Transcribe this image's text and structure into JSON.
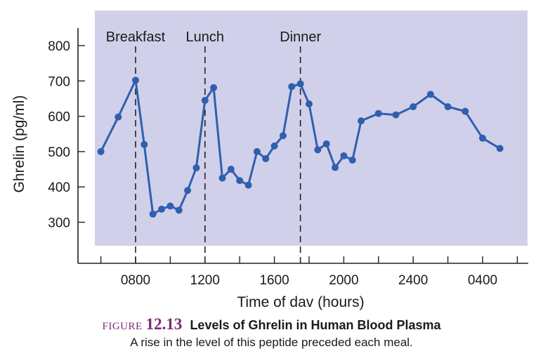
{
  "chart_data": {
    "type": "line",
    "xlabel": "Time of dav (hours)",
    "ylabel": "Ghrelin (pg/ml)",
    "x_ticks": [
      "0800",
      "1200",
      "1600",
      "2000",
      "2400",
      "0400"
    ],
    "y_ticks": [
      300,
      400,
      500,
      600,
      700,
      800
    ],
    "ylim": [
      240,
      850
    ],
    "xlim_hours": [
      5.5,
      31.5
    ],
    "grid": false,
    "background_color": "#d1d0ea",
    "line_color": "#2f5fae",
    "marker_color": "#2f5fae",
    "meals": [
      {
        "label": "Breakfast",
        "hour": 8.0
      },
      {
        "label": "Lunch",
        "hour": 12.0
      },
      {
        "label": "Dinner",
        "hour": 17.5
      }
    ],
    "series": [
      {
        "hours": [
          6.0,
          7.0,
          8.0,
          8.5,
          9.0,
          9.5,
          10.0,
          10.5,
          11.0,
          11.5,
          12.0,
          12.5,
          13.0,
          13.5,
          14.0,
          14.5,
          15.0,
          15.5,
          16.0,
          16.5,
          17.0,
          17.5,
          18.0,
          18.5,
          19.0,
          19.5,
          20.0,
          20.5,
          21.0,
          22.0,
          23.0,
          24.0,
          25.0,
          26.0,
          27.0,
          28.0,
          29.0
        ],
        "values": [
          500,
          598,
          702,
          520,
          323,
          337,
          346,
          334,
          390,
          454,
          645,
          681,
          425,
          450,
          418,
          405,
          500,
          480,
          516,
          545,
          684,
          692,
          635,
          505,
          522,
          455,
          488,
          476,
          587,
          608,
          604,
          627,
          662,
          627,
          614,
          538,
          509
        ]
      }
    ]
  },
  "caption": {
    "figure_word": "FIGURE",
    "figure_number": "12.13",
    "title": "Levels of Ghrelin in Human Blood Plasma",
    "subtitle": "A rise in the level of this peptide preceded each meal."
  }
}
